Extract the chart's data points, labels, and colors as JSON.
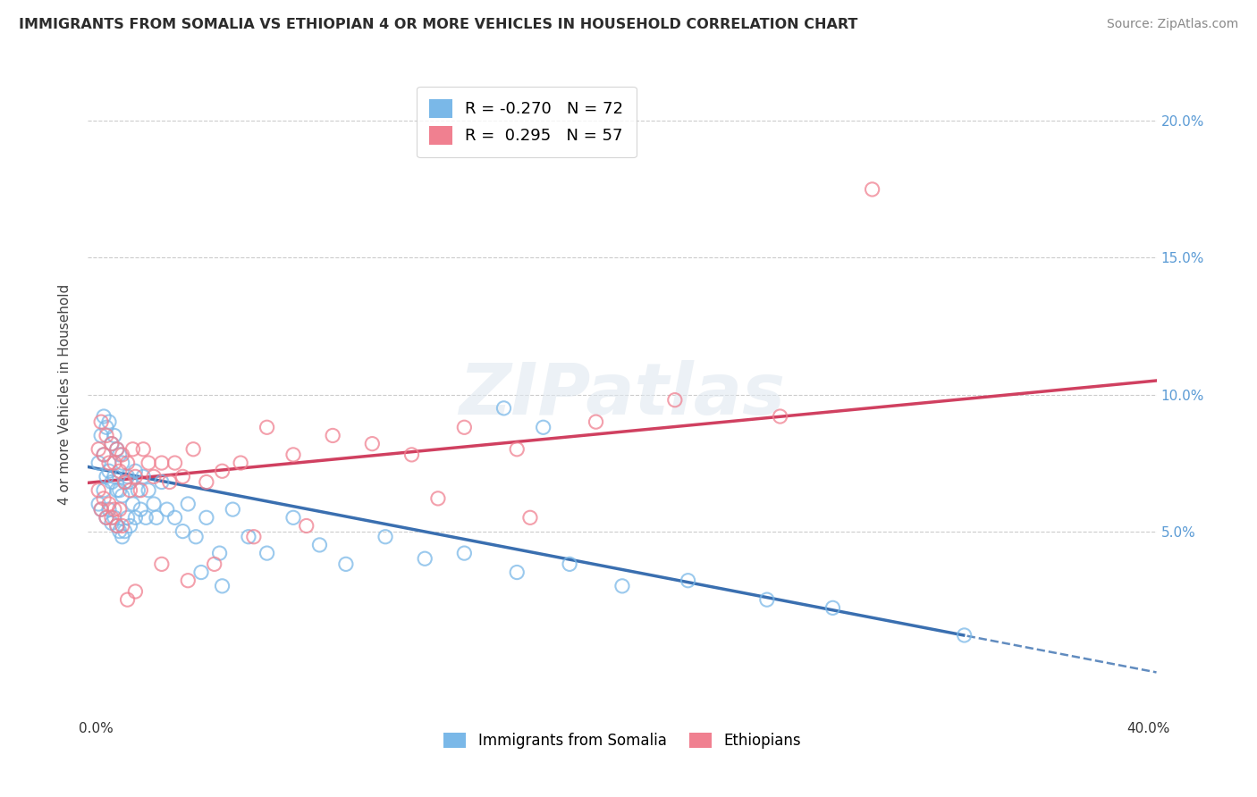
{
  "title": "IMMIGRANTS FROM SOMALIA VS ETHIOPIAN 4 OR MORE VEHICLES IN HOUSEHOLD CORRELATION CHART",
  "source": "Source: ZipAtlas.com",
  "ylabel": "4 or more Vehicles in Household",
  "xlim": [
    -0.003,
    0.403
  ],
  "ylim": [
    -0.018,
    0.218
  ],
  "xtick_positions": [
    0.0,
    0.1,
    0.2,
    0.3,
    0.4
  ],
  "xtick_labels": [
    "0.0%",
    "",
    "",
    "",
    "40.0%"
  ],
  "ytick_positions": [
    0.05,
    0.1,
    0.15,
    0.2
  ],
  "ytick_labels": [
    "5.0%",
    "10.0%",
    "15.0%",
    "20.0%"
  ],
  "R_somalia": -0.27,
  "N_somalia": 72,
  "R_ethiopian": 0.295,
  "N_ethiopian": 57,
  "somalia_color": "#7ab8e8",
  "ethiopian_color": "#f08090",
  "watermark_text": "ZIPatlas",
  "legend1_label": "Immigrants from Somalia",
  "legend2_label": "Ethiopians",
  "somalia_line_intercept": 0.073,
  "somalia_line_slope": -0.185,
  "ethiopian_line_intercept": 0.068,
  "ethiopian_line_slope": 0.092,
  "somalia_x": [
    0.001,
    0.001,
    0.002,
    0.002,
    0.003,
    0.003,
    0.003,
    0.004,
    0.004,
    0.004,
    0.005,
    0.005,
    0.005,
    0.006,
    0.006,
    0.006,
    0.007,
    0.007,
    0.007,
    0.008,
    0.008,
    0.008,
    0.009,
    0.009,
    0.009,
    0.01,
    0.01,
    0.01,
    0.011,
    0.011,
    0.012,
    0.012,
    0.013,
    0.013,
    0.014,
    0.015,
    0.015,
    0.016,
    0.017,
    0.018,
    0.019,
    0.02,
    0.022,
    0.023,
    0.025,
    0.027,
    0.03,
    0.033,
    0.035,
    0.038,
    0.042,
    0.047,
    0.052,
    0.058,
    0.065,
    0.075,
    0.085,
    0.095,
    0.11,
    0.125,
    0.14,
    0.16,
    0.18,
    0.2,
    0.225,
    0.255,
    0.155,
    0.17,
    0.04,
    0.048,
    0.28,
    0.33
  ],
  "somalia_y": [
    0.06,
    0.075,
    0.058,
    0.085,
    0.065,
    0.078,
    0.092,
    0.055,
    0.07,
    0.088,
    0.058,
    0.072,
    0.09,
    0.053,
    0.068,
    0.082,
    0.055,
    0.07,
    0.085,
    0.052,
    0.065,
    0.08,
    0.05,
    0.065,
    0.078,
    0.048,
    0.063,
    0.075,
    0.05,
    0.068,
    0.055,
    0.07,
    0.052,
    0.068,
    0.06,
    0.055,
    0.072,
    0.065,
    0.058,
    0.07,
    0.055,
    0.065,
    0.06,
    0.055,
    0.068,
    0.058,
    0.055,
    0.05,
    0.06,
    0.048,
    0.055,
    0.042,
    0.058,
    0.048,
    0.042,
    0.055,
    0.045,
    0.038,
    0.048,
    0.04,
    0.042,
    0.035,
    0.038,
    0.03,
    0.032,
    0.025,
    0.095,
    0.088,
    0.035,
    0.03,
    0.022,
    0.012
  ],
  "ethiopian_x": [
    0.001,
    0.001,
    0.002,
    0.002,
    0.003,
    0.003,
    0.004,
    0.004,
    0.005,
    0.005,
    0.006,
    0.006,
    0.007,
    0.007,
    0.008,
    0.008,
    0.009,
    0.009,
    0.01,
    0.01,
    0.011,
    0.012,
    0.013,
    0.014,
    0.015,
    0.017,
    0.018,
    0.02,
    0.022,
    0.025,
    0.028,
    0.03,
    0.033,
    0.037,
    0.042,
    0.048,
    0.055,
    0.065,
    0.075,
    0.09,
    0.105,
    0.12,
    0.14,
    0.16,
    0.19,
    0.22,
    0.26,
    0.295,
    0.165,
    0.13,
    0.08,
    0.06,
    0.045,
    0.035,
    0.025,
    0.015,
    0.012
  ],
  "ethiopian_y": [
    0.065,
    0.08,
    0.058,
    0.09,
    0.062,
    0.078,
    0.055,
    0.085,
    0.06,
    0.075,
    0.055,
    0.082,
    0.058,
    0.075,
    0.052,
    0.08,
    0.058,
    0.072,
    0.052,
    0.078,
    0.068,
    0.075,
    0.065,
    0.08,
    0.07,
    0.065,
    0.08,
    0.075,
    0.07,
    0.075,
    0.068,
    0.075,
    0.07,
    0.08,
    0.068,
    0.072,
    0.075,
    0.088,
    0.078,
    0.085,
    0.082,
    0.078,
    0.088,
    0.08,
    0.09,
    0.098,
    0.092,
    0.175,
    0.055,
    0.062,
    0.052,
    0.048,
    0.038,
    0.032,
    0.038,
    0.028,
    0.025
  ]
}
